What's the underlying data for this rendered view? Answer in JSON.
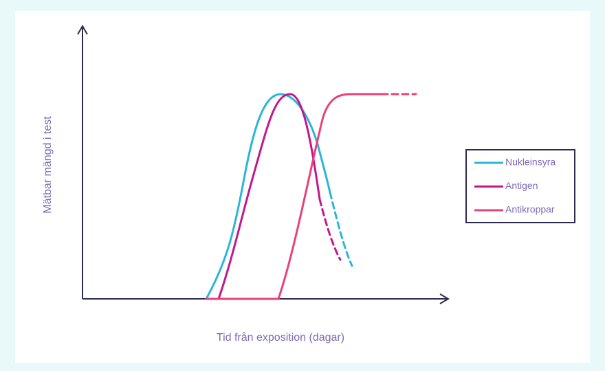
{
  "axes": {
    "y_label": "Mätbar mängd i test",
    "x_label": "Tid från exposition (dagar)"
  },
  "legend": [
    {
      "name": "Nukleinsyra",
      "color": "#2bb5d8"
    },
    {
      "name": "Antigen",
      "color": "#c2178c"
    },
    {
      "name": "Antikroppar",
      "color": "#e8417c"
    }
  ]
}
